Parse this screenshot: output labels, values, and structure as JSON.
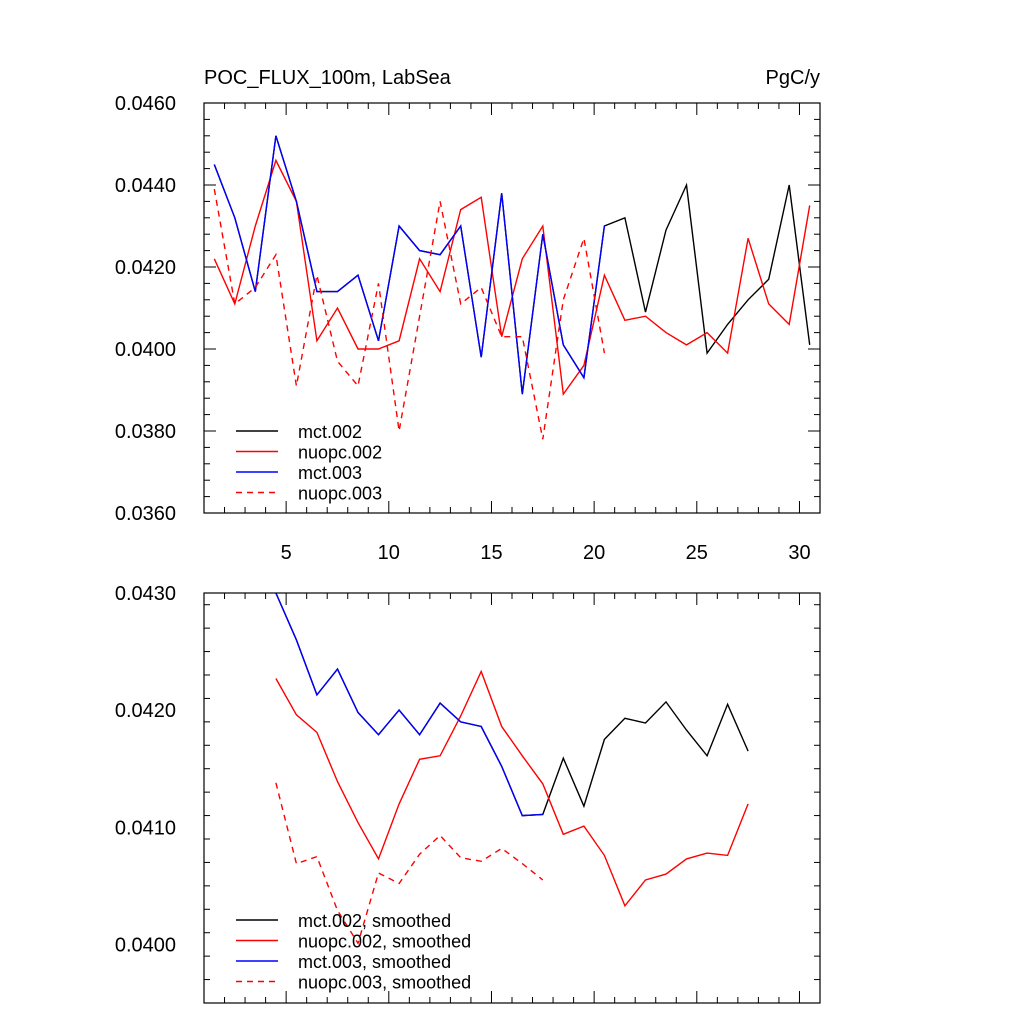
{
  "chart_data": [
    {
      "type": "line",
      "title": "POC_FLUX_100m, LabSea",
      "units": "PgC/y",
      "xlim": [
        1,
        31
      ],
      "ylim": [
        0.036,
        0.046
      ],
      "x_ticks": [
        5,
        10,
        15,
        20,
        25,
        30
      ],
      "x_tick_labels": [
        "5",
        "10",
        "15",
        "20",
        "25",
        "30"
      ],
      "y_ticks": [
        0.036,
        0.038,
        0.04,
        0.042,
        0.044,
        0.046
      ],
      "y_tick_labels": [
        "0.0360",
        "0.0380",
        "0.0400",
        "0.0420",
        "0.0440",
        "0.0460"
      ],
      "legend_position": "bottom-left",
      "series": [
        {
          "name": "mct.002",
          "color": "#000000",
          "dash": "solid",
          "x": [
            1.5,
            2.5,
            3.5,
            4.5,
            5.5,
            6.5,
            7.5,
            8.5,
            9.5,
            10.5,
            11.5,
            12.5,
            13.5,
            14.5,
            15.5,
            16.5,
            17.5,
            18.5,
            19.5,
            20.5,
            21.5,
            22.5,
            23.5,
            24.5,
            25.5,
            26.5,
            27.5,
            28.5,
            29.5,
            30.5
          ],
          "y": [
            0.0445,
            0.0432,
            0.0414,
            0.0452,
            0.0436,
            0.0414,
            0.0414,
            0.0418,
            0.0402,
            0.043,
            0.0424,
            0.0423,
            0.043,
            0.0398,
            0.0438,
            0.0389,
            0.0428,
            0.0401,
            0.0393,
            0.043,
            0.0432,
            0.0409,
            0.0429,
            0.044,
            0.0399,
            0.0406,
            0.0412,
            0.0417,
            0.044,
            0.0401
          ]
        },
        {
          "name": "nuopc.002",
          "color": "#ff0000",
          "dash": "solid",
          "x": [
            1.5,
            2.5,
            3.5,
            4.5,
            5.5,
            6.5,
            7.5,
            8.5,
            9.5,
            10.5,
            11.5,
            12.5,
            13.5,
            14.5,
            15.5,
            16.5,
            17.5,
            18.5,
            19.5,
            20.5,
            21.5,
            22.5,
            23.5,
            24.5,
            25.5,
            26.5,
            27.5,
            28.5,
            29.5,
            30.5
          ],
          "y": [
            0.0422,
            0.0411,
            0.043,
            0.0446,
            0.0436,
            0.0402,
            0.041,
            0.04,
            0.04,
            0.0402,
            0.0422,
            0.0414,
            0.0434,
            0.0437,
            0.0403,
            0.0422,
            0.043,
            0.0389,
            0.0396,
            0.0418,
            0.0407,
            0.0408,
            0.0404,
            0.0401,
            0.0404,
            0.0399,
            0.0427,
            0.0411,
            0.0406,
            0.0435
          ]
        },
        {
          "name": "mct.003",
          "color": "#0000ff",
          "dash": "solid",
          "x": [
            1.5,
            2.5,
            3.5,
            4.5,
            5.5,
            6.5,
            7.5,
            8.5,
            9.5,
            10.5,
            11.5,
            12.5,
            13.5,
            14.5,
            15.5,
            16.5,
            17.5,
            18.5,
            19.5,
            20.5
          ],
          "y": [
            0.0445,
            0.0432,
            0.0414,
            0.0452,
            0.0436,
            0.0414,
            0.0414,
            0.0418,
            0.0402,
            0.043,
            0.0424,
            0.0423,
            0.043,
            0.0398,
            0.0438,
            0.0389,
            0.0428,
            0.0401,
            0.0393,
            0.043
          ]
        },
        {
          "name": "nuopc.003",
          "color": "#ff0000",
          "dash": "dashed",
          "x": [
            1.5,
            2.5,
            3.5,
            4.5,
            5.5,
            6.5,
            7.5,
            8.5,
            9.5,
            10.5,
            11.5,
            12.5,
            13.5,
            14.5,
            15.5,
            16.5,
            17.5,
            18.5,
            19.5,
            20.5
          ],
          "y": [
            0.0439,
            0.0411,
            0.0415,
            0.0423,
            0.0391,
            0.0418,
            0.0397,
            0.0391,
            0.0416,
            0.038,
            0.0408,
            0.0436,
            0.0411,
            0.0415,
            0.0403,
            0.0403,
            0.0378,
            0.0412,
            0.0427,
            0.0399
          ]
        }
      ]
    },
    {
      "type": "line",
      "title": "",
      "xlim": [
        1,
        31
      ],
      "ylim": [
        0.0395,
        0.043
      ],
      "x_ticks": [
        5,
        10,
        15,
        20,
        25,
        30
      ],
      "x_tick_labels": [],
      "y_ticks": [
        0.04,
        0.041,
        0.042,
        0.043
      ],
      "y_tick_labels": [
        "0.0400",
        "0.0410",
        "0.0420",
        "0.0430"
      ],
      "legend_position": "bottom-left",
      "series": [
        {
          "name": "mct.002, smoothed",
          "color": "#000000",
          "dash": "solid",
          "x": [
            4.5,
            5.5,
            6.5,
            7.5,
            8.5,
            9.5,
            10.5,
            11.5,
            12.5,
            13.5,
            14.5,
            15.5,
            16.5,
            17.5,
            18.5,
            19.5,
            20.5,
            21.5,
            22.5,
            23.5,
            24.5,
            25.5,
            26.5,
            27.5
          ],
          "y": [
            0.043,
            0.0426,
            0.04213,
            0.04235,
            0.04198,
            0.04179,
            0.042,
            0.04179,
            0.04206,
            0.0419,
            0.04186,
            0.04152,
            0.0411,
            0.04111,
            0.04159,
            0.04118,
            0.04175,
            0.04193,
            0.04189,
            0.04207,
            0.04183,
            0.04161,
            0.04205,
            0.04165
          ]
        },
        {
          "name": "nuopc.002, smoothed",
          "color": "#ff0000",
          "dash": "solid",
          "x": [
            4.5,
            5.5,
            6.5,
            7.5,
            8.5,
            9.5,
            10.5,
            11.5,
            12.5,
            13.5,
            14.5,
            15.5,
            16.5,
            17.5,
            18.5,
            19.5,
            20.5,
            21.5,
            22.5,
            23.5,
            24.5,
            25.5,
            26.5,
            27.5
          ],
          "y": [
            0.04227,
            0.04196,
            0.04181,
            0.04139,
            0.04104,
            0.04073,
            0.0412,
            0.04158,
            0.04161,
            0.04195,
            0.04233,
            0.04186,
            0.04161,
            0.04137,
            0.04094,
            0.04101,
            0.04076,
            0.04033,
            0.04055,
            0.0406,
            0.04073,
            0.04078,
            0.04076,
            0.0412
          ]
        },
        {
          "name": "mct.003, smoothed",
          "color": "#0000ff",
          "dash": "solid",
          "x": [
            4.5,
            5.5,
            6.5,
            7.5,
            8.5,
            9.5,
            10.5,
            11.5,
            12.5,
            13.5,
            14.5,
            15.5,
            16.5,
            17.5
          ],
          "y": [
            0.043,
            0.0426,
            0.04213,
            0.04235,
            0.04198,
            0.04179,
            0.042,
            0.04179,
            0.04206,
            0.0419,
            0.04186,
            0.04152,
            0.0411,
            0.04111
          ]
        },
        {
          "name": "nuopc.003, smoothed",
          "color": "#ff0000",
          "dash": "dashed",
          "x": [
            4.5,
            5.5,
            6.5,
            7.5,
            8.5,
            9.5,
            10.5,
            11.5,
            12.5,
            13.5,
            14.5,
            15.5,
            16.5,
            17.5
          ],
          "y": [
            0.04138,
            0.04069,
            0.04075,
            0.04029,
            0.04001,
            0.04061,
            0.04052,
            0.04077,
            0.04093,
            0.04074,
            0.04071,
            0.04082,
            0.04069,
            0.04055
          ]
        }
      ]
    }
  ]
}
